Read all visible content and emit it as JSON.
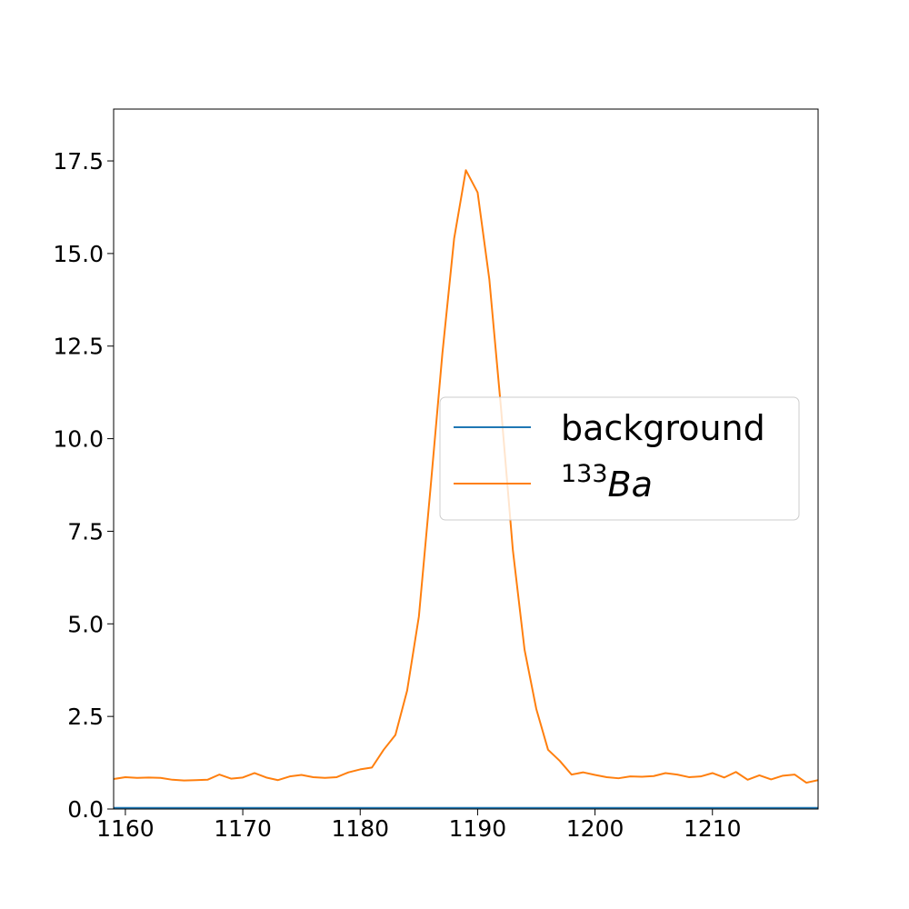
{
  "chart_data": {
    "type": "line",
    "title": "",
    "xlabel": "",
    "ylabel": "",
    "xlim": [
      1159,
      1219
    ],
    "ylim": [
      0,
      18.9
    ],
    "x_ticks": [
      1160,
      1170,
      1180,
      1190,
      1200,
      1210
    ],
    "y_ticks": [
      0.0,
      2.5,
      5.0,
      7.5,
      10.0,
      12.5,
      15.0,
      17.5
    ],
    "x_tick_labels": [
      "1160",
      "1170",
      "1180",
      "1190",
      "1200",
      "1210"
    ],
    "y_tick_labels": [
      "0.0",
      "2.5",
      "5.0",
      "7.5",
      "10.0",
      "12.5",
      "15.0",
      "17.5"
    ],
    "grid": false,
    "legend_position": "center-right",
    "x": [
      1159,
      1160,
      1161,
      1162,
      1163,
      1164,
      1165,
      1166,
      1167,
      1168,
      1169,
      1170,
      1171,
      1172,
      1173,
      1174,
      1175,
      1176,
      1177,
      1178,
      1179,
      1180,
      1181,
      1182,
      1183,
      1184,
      1185,
      1186,
      1187,
      1188,
      1189,
      1190,
      1191,
      1192,
      1193,
      1194,
      1195,
      1196,
      1197,
      1198,
      1199,
      1200,
      1201,
      1202,
      1203,
      1204,
      1205,
      1206,
      1207,
      1208,
      1209,
      1210,
      1211,
      1212,
      1213,
      1214,
      1215,
      1216,
      1217,
      1218,
      1219
    ],
    "series": [
      {
        "name": "background",
        "color": "#1f77b4",
        "values": [
          0.03,
          0.03,
          0.03,
          0.03,
          0.03,
          0.03,
          0.03,
          0.03,
          0.03,
          0.03,
          0.03,
          0.03,
          0.03,
          0.03,
          0.03,
          0.03,
          0.03,
          0.03,
          0.03,
          0.03,
          0.03,
          0.03,
          0.03,
          0.03,
          0.03,
          0.03,
          0.03,
          0.03,
          0.03,
          0.03,
          0.03,
          0.03,
          0.03,
          0.03,
          0.03,
          0.03,
          0.03,
          0.03,
          0.03,
          0.03,
          0.03,
          0.03,
          0.03,
          0.03,
          0.03,
          0.03,
          0.03,
          0.03,
          0.03,
          0.03,
          0.03,
          0.03,
          0.03,
          0.03,
          0.03,
          0.03,
          0.03,
          0.03,
          0.03,
          0.03,
          0.03
        ]
      },
      {
        "name_superscript": "133",
        "name_main": "Ba",
        "color": "#ff7f0e",
        "values": [
          0.81,
          0.86,
          0.84,
          0.85,
          0.84,
          0.79,
          0.77,
          0.78,
          0.79,
          0.93,
          0.82,
          0.85,
          0.97,
          0.85,
          0.78,
          0.88,
          0.92,
          0.86,
          0.84,
          0.86,
          0.99,
          1.07,
          1.12,
          1.6,
          2.0,
          3.2,
          5.2,
          8.7,
          12.3,
          15.4,
          17.25,
          16.65,
          14.3,
          10.8,
          7.0,
          4.3,
          2.7,
          1.6,
          1.3,
          0.93,
          0.99,
          0.92,
          0.86,
          0.83,
          0.88,
          0.87,
          0.89,
          0.97,
          0.93,
          0.86,
          0.88,
          0.97,
          0.85,
          1.0,
          0.79,
          0.91,
          0.8,
          0.9,
          0.93,
          0.71,
          0.78
        ]
      }
    ]
  }
}
